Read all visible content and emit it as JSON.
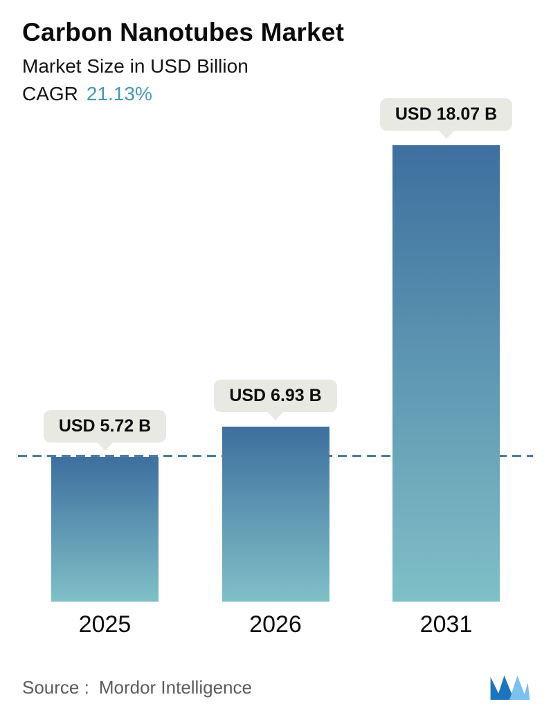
{
  "header": {
    "title": "Carbon Nanotubes Market",
    "subtitle": "Market Size in USD Billion",
    "cagr_label": "CAGR",
    "cagr_value": "21.13%"
  },
  "chart_data": {
    "type": "bar",
    "title": "Carbon Nanotubes Market",
    "subtitle": "Market Size in USD Billion",
    "cagr_pct": 21.13,
    "categories": [
      "2025",
      "2026",
      "2031"
    ],
    "values": [
      5.72,
      6.93,
      18.07
    ],
    "value_labels": [
      "USD 5.72 B",
      "USD 6.93 B",
      "USD 18.07 B"
    ],
    "unit": "USD Billion",
    "ylim": [
      0,
      18.07
    ],
    "reference_line": 5.72,
    "grid": false,
    "legend": "none",
    "xlabel": "",
    "ylabel": ""
  },
  "footer": {
    "source_label": "Source :",
    "source_value": "Mordor Intelligence"
  },
  "colors": {
    "cagr_accent": "#4796b8",
    "dashed_line": "#4b7da5",
    "pill_bg": "#e9e9e4",
    "bar_top": "#3e6f9e",
    "bar_bottom": "#7fc0c7",
    "logo_dark": "#1c75bc",
    "logo_light": "#7cc0ec",
    "source_text": "#5c5c5c"
  }
}
